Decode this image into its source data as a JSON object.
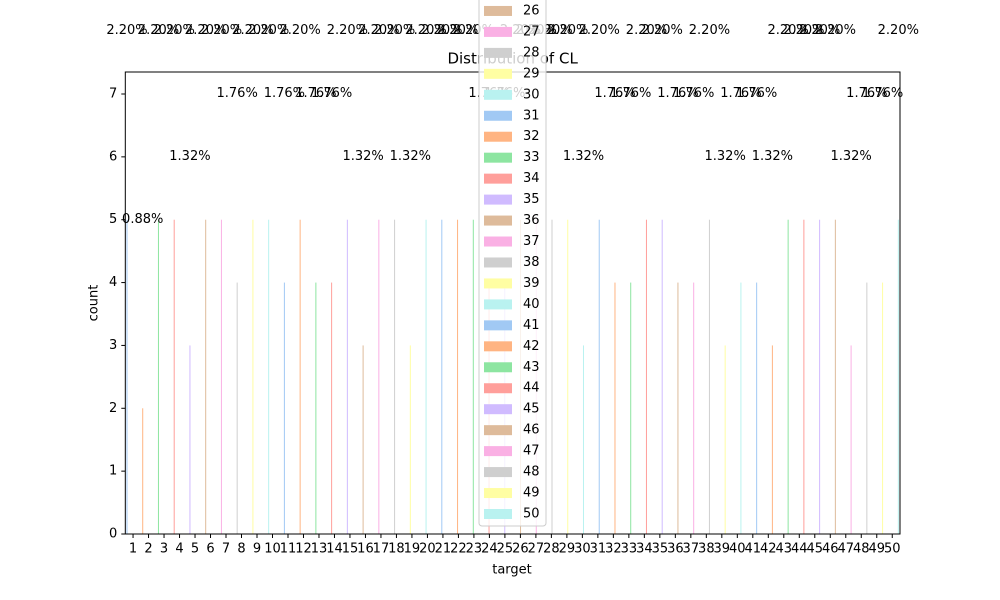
{
  "chart_data": {
    "type": "bar",
    "title": "Distribution of CL",
    "x_label": "target",
    "y_label": "count",
    "categories": [
      "1",
      "2",
      "3",
      "4",
      "5",
      "6",
      "7",
      "8",
      "9",
      "10",
      "11",
      "12",
      "13",
      "14",
      "15",
      "16",
      "17",
      "18",
      "19",
      "20",
      "21",
      "22",
      "23",
      "24",
      "25",
      "26",
      "27",
      "28",
      "29",
      "30",
      "31",
      "32",
      "33",
      "34",
      "35",
      "36",
      "37",
      "38",
      "39",
      "40",
      "41",
      "42",
      "43",
      "44",
      "45",
      "46",
      "47",
      "48",
      "49",
      "50"
    ],
    "values": [
      5,
      2,
      5,
      5,
      3,
      5,
      5,
      4,
      5,
      5,
      4,
      5,
      4,
      4,
      5,
      3,
      5,
      5,
      3,
      5,
      5,
      5,
      5,
      4,
      4,
      5,
      5,
      5,
      5,
      3,
      5,
      4,
      4,
      5,
      5,
      4,
      4,
      5,
      3,
      4,
      4,
      3,
      5,
      5,
      5,
      5,
      3,
      4,
      4,
      5
    ],
    "value_labels": [
      "2.20%",
      "0.88%",
      "2.20%",
      "2.20%",
      "1.32%",
      "2.20%",
      "2.20%",
      "1.76%",
      "2.20%",
      "2.20%",
      "1.76%",
      "2.20%",
      "1.76%",
      "1.76%",
      "2.20%",
      "1.32%",
      "2.20%",
      "2.20%",
      "1.32%",
      "2.20%",
      "2.20%",
      "2.20%",
      "2.20%",
      "1.76%",
      "1.76%",
      "2.20%",
      "2.20%",
      "2.20%",
      "2.20%",
      "1.32%",
      "2.20%",
      "1.76%",
      "1.76%",
      "2.20%",
      "2.20%",
      "1.76%",
      "1.76%",
      "2.20%",
      "1.32%",
      "1.76%",
      "1.76%",
      "1.32%",
      "2.20%",
      "2.20%",
      "2.20%",
      "2.20%",
      "1.32%",
      "1.76%",
      "1.76%",
      "2.20%"
    ],
    "palette": [
      "#a1c9f4",
      "#ffb482",
      "#8de5a1",
      "#ff9f9b",
      "#d0bbff",
      "#debb9b",
      "#fab0e4",
      "#cfcfcf",
      "#fffea3",
      "#b9f2f0"
    ],
    "ylim": [
      0,
      7.35
    ],
    "yticks": [
      0,
      1,
      2,
      3,
      4,
      5,
      6,
      7
    ],
    "grid": false,
    "legend_position": "upper center"
  }
}
